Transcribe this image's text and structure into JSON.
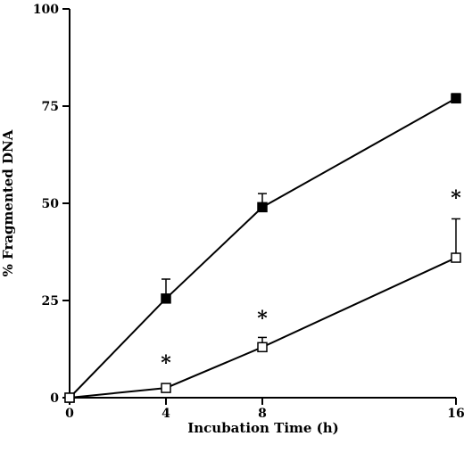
{
  "chart_data": {
    "type": "line",
    "xlabel": "Incubation Time (h)",
    "ylabel": "% Fragmented DNA",
    "x_ticks": [
      "0",
      "4",
      "8",
      "16"
    ],
    "y_ticks": [
      "0",
      "25",
      "50",
      "75",
      "100"
    ],
    "ylim": [
      0,
      100
    ],
    "x_scale": "categorical (0, 4, 8, 16 evenly spaced)",
    "grid": false,
    "legend": "none",
    "categories": [
      "0",
      "4",
      "8",
      "16"
    ],
    "series": [
      {
        "marker": "filled-square",
        "color": "#000000",
        "values": [
          0,
          25.5,
          49,
          77
        ],
        "error_plus": [
          0,
          5,
          3.5,
          1.2
        ]
      },
      {
        "marker": "open-square",
        "color": "#000000",
        "values": [
          0,
          2.5,
          13,
          36
        ],
        "error_plus": [
          0,
          0,
          2.5,
          10
        ]
      }
    ],
    "annotations": [
      {
        "text": "*",
        "x": "4",
        "y": 9.5
      },
      {
        "text": "*",
        "x": "8",
        "y": 21
      },
      {
        "text": "*",
        "x": "16",
        "y": 52
      }
    ]
  }
}
